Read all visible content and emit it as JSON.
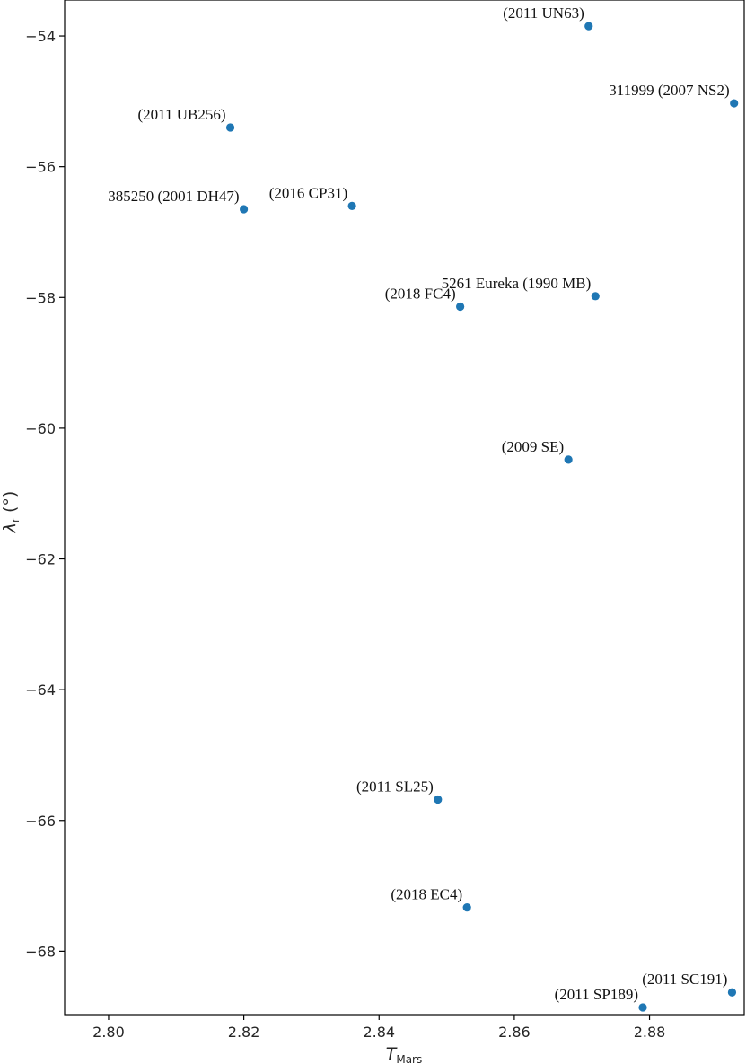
{
  "chart_data": {
    "type": "scatter",
    "title": "",
    "xlabel": {
      "main": "T",
      "sub": "Mars"
    },
    "ylabel": {
      "main": "λ",
      "sub": "r",
      "unit": " (°)"
    },
    "xlim": [
      2.7935,
      2.894
    ],
    "ylim": [
      -68.97,
      -53.45
    ],
    "xticks": [
      "2.80",
      "2.82",
      "2.84",
      "2.86",
      "2.88"
    ],
    "yticks": [
      "−54",
      "−56",
      "−58",
      "−60",
      "−62",
      "−64",
      "−66",
      "−68"
    ],
    "grid": false,
    "marker_color": "#1f77b4",
    "points": [
      {
        "x": 2.871,
        "y": -53.85,
        "label": "(2011 UN63)"
      },
      {
        "x": 2.8925,
        "y": -55.03,
        "label": "311999 (2007 NS2)"
      },
      {
        "x": 2.818,
        "y": -55.4,
        "label": "(2011 UB256)"
      },
      {
        "x": 2.82,
        "y": -56.65,
        "label": "385250 (2001 DH47)"
      },
      {
        "x": 2.836,
        "y": -56.6,
        "label": "(2016 CP31)"
      },
      {
        "x": 2.872,
        "y": -57.98,
        "label": "5261 Eureka (1990 MB)"
      },
      {
        "x": 2.852,
        "y": -58.14,
        "label": "(2018 FC4)"
      },
      {
        "x": 2.868,
        "y": -60.48,
        "label": "(2009 SE)"
      },
      {
        "x": 2.8487,
        "y": -65.68,
        "label": "(2011 SL25)"
      },
      {
        "x": 2.853,
        "y": -67.33,
        "label": "(2018 EC4)"
      },
      {
        "x": 2.8922,
        "y": -68.63,
        "label": "(2011 SC191)"
      },
      {
        "x": 2.879,
        "y": -68.86,
        "label": "(2011 SP189)"
      }
    ]
  }
}
